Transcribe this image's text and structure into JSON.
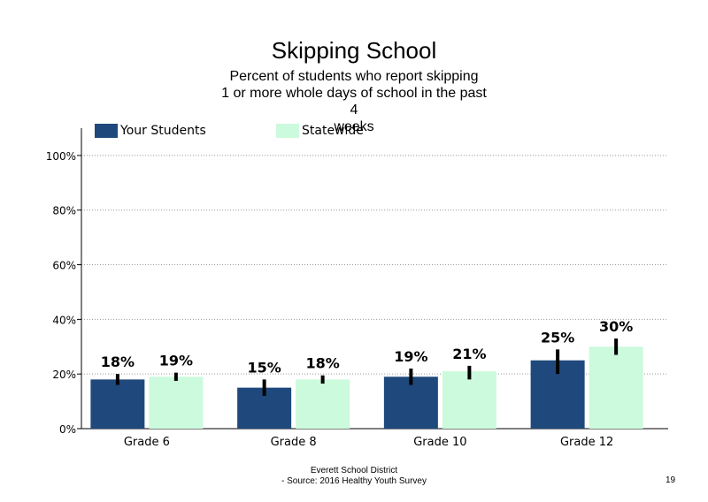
{
  "chart_data": {
    "type": "bar",
    "title": "Skipping School",
    "subtitle_lines": [
      "Percent of students who report skipping",
      "1 or more whole days of school in the past 4",
      "weeks"
    ],
    "categories": [
      "Grade 6",
      "Grade 8",
      "Grade 10",
      "Grade 12"
    ],
    "series": [
      {
        "name": "Your Students",
        "color": "#1f497d",
        "values": [
          18,
          15,
          19,
          25
        ],
        "labels": [
          "18%",
          "15%",
          "19%",
          "25%"
        ],
        "error_low": [
          16,
          12,
          16,
          20
        ],
        "error_high": [
          20,
          18,
          22,
          29
        ]
      },
      {
        "name": "Statewide",
        "color": "#ccfadc",
        "values": [
          19,
          18,
          21,
          30
        ],
        "labels": [
          "19%",
          "18%",
          "21%",
          "30%"
        ],
        "error_low": [
          17.5,
          16.5,
          18,
          27
        ],
        "error_high": [
          20.5,
          19.5,
          23,
          33
        ]
      }
    ],
    "ylim": [
      0,
      110
    ],
    "yticks": [
      0,
      20,
      40,
      60,
      80,
      100
    ],
    "ytick_labels": [
      "0%",
      "20%",
      "40%",
      "60%",
      "80%",
      "100%"
    ],
    "xlabel": "",
    "ylabel": "",
    "grid": "horizontal dotted",
    "legend_position": "top"
  },
  "footer": {
    "line1": "Everett School District",
    "line2": "- Source: 2016 Healthy  Youth Survey"
  },
  "page_number": "19"
}
